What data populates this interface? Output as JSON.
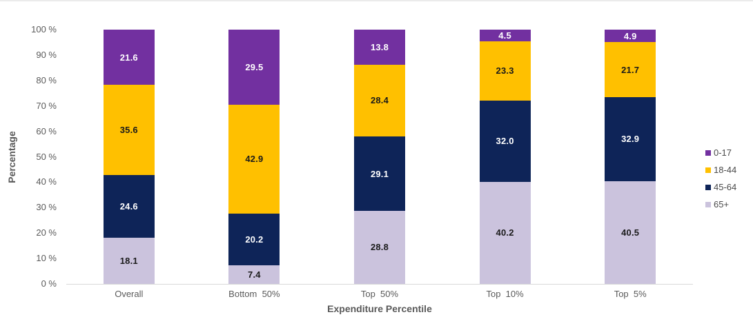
{
  "chart_data": {
    "type": "bar",
    "stacked": true,
    "title": "",
    "xlabel": "Expenditure Percentile",
    "ylabel": "Percentage",
    "ylim": [
      0,
      100
    ],
    "grid": false,
    "categories": [
      "Overall",
      "Bottom  50%",
      "Top  50%",
      "Top  10%",
      "Top  5%"
    ],
    "series": [
      {
        "name": "65+",
        "color": "#cbc3dd",
        "label_color": "#1a1a1a",
        "values": [
          18.1,
          7.4,
          28.8,
          40.2,
          40.5
        ]
      },
      {
        "name": "45-64",
        "color": "#0e2458",
        "label_color": "#ffffff",
        "values": [
          24.6,
          20.2,
          29.1,
          32.0,
          32.9
        ]
      },
      {
        "name": "18-44",
        "color": "#ffc000",
        "label_color": "#1a1a1a",
        "values": [
          35.6,
          42.9,
          28.4,
          23.3,
          21.7
        ]
      },
      {
        "name": "0-17",
        "color": "#7230a0",
        "label_color": "#ffffff",
        "values": [
          21.6,
          29.5,
          13.8,
          4.5,
          4.9
        ]
      }
    ],
    "y_ticks": {
      "values": [
        0,
        10,
        20,
        30,
        40,
        50,
        60,
        70,
        80,
        90,
        100
      ],
      "labels": [
        "0 %",
        "10 %",
        "20 %",
        "30 %",
        "40 %",
        "50 %",
        "60 %",
        "70 %",
        "80 %",
        "90 %",
        "100 %"
      ]
    },
    "legend": {
      "position": "right",
      "entries": [
        {
          "label": "0-17",
          "color": "#7230a0"
        },
        {
          "label": "18-44",
          "color": "#ffc000"
        },
        {
          "label": "45-64",
          "color": "#0e2458"
        },
        {
          "label": "65+",
          "color": "#cbc3dd"
        }
      ]
    },
    "axis_colors": {
      "text": "#595959",
      "line": "#d9d9d9"
    }
  }
}
